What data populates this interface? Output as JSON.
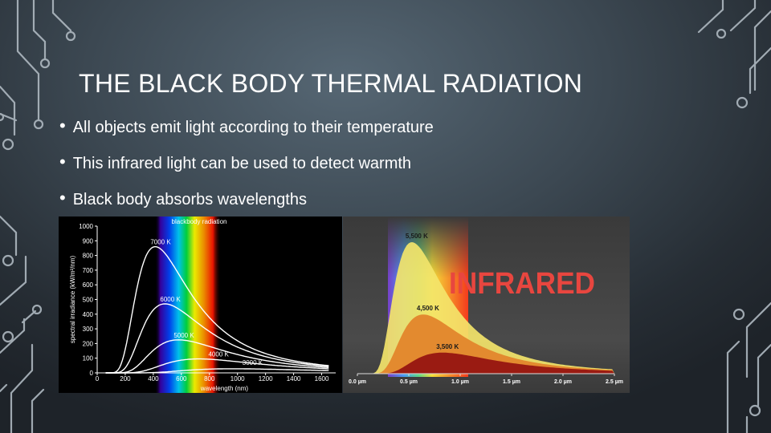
{
  "slide": {
    "title": "THE BLACK BODY THERMAL RADIATION",
    "bullets": [
      "All objects emit light according to their temperature",
      "This infrared light can be used to detect warmth",
      "Black body absorbs wavelengths"
    ]
  },
  "colors": {
    "background": "#3c4852",
    "circuit_lines": "#aeb8c0",
    "text": "#ffffff",
    "infrared_label": "#e8463f",
    "curve_yellow": "#f3e46a",
    "curve_orange": "#e38a2f",
    "curve_red": "#9a1b12"
  },
  "chart_data": [
    {
      "type": "line",
      "title": "blackbody radiation",
      "xlabel": "wavelength (nm)",
      "ylabel": "spectral irradiance (kW/m²/nm)",
      "xlim": [
        0,
        1700
      ],
      "ylim": [
        0,
        1000
      ],
      "xticks": [
        0,
        200,
        400,
        600,
        800,
        1000,
        1200,
        1400,
        1600
      ],
      "yticks": [
        0,
        100,
        200,
        300,
        400,
        500,
        600,
        700,
        800,
        900,
        1000
      ],
      "grid": false,
      "series": [
        {
          "name": "7000 K",
          "temperature": 7000,
          "peak": [
            414,
            860
          ]
        },
        {
          "name": "6000 K",
          "temperature": 6000,
          "peak": [
            483,
            470
          ]
        },
        {
          "name": "5000 K",
          "temperature": 5000,
          "peak": [
            580,
            225
          ]
        },
        {
          "name": "4000 K",
          "temperature": 4000,
          "peak": [
            724,
            95
          ]
        },
        {
          "name": "3000 K",
          "temperature": 3000,
          "peak": [
            966,
            28
          ]
        }
      ]
    },
    {
      "type": "area",
      "title": "INFRARED",
      "xlabel": "",
      "ylabel": "",
      "xlim": [
        0,
        2.5
      ],
      "xticks": [
        "0.0 µm",
        "0.5 µm",
        "1.0 µm",
        "1.5 µm",
        "2.0 µm",
        "2.5 µm"
      ],
      "grid": false,
      "series": [
        {
          "name": "5,500 K",
          "temperature": 5500,
          "peak_um": 0.53,
          "relative_peak": 1.0
        },
        {
          "name": "4,500 K",
          "temperature": 4500,
          "peak_um": 0.64,
          "relative_peak": 0.45
        },
        {
          "name": "3,500 K",
          "temperature": 3500,
          "peak_um": 0.83,
          "relative_peak": 0.16
        }
      ]
    }
  ]
}
